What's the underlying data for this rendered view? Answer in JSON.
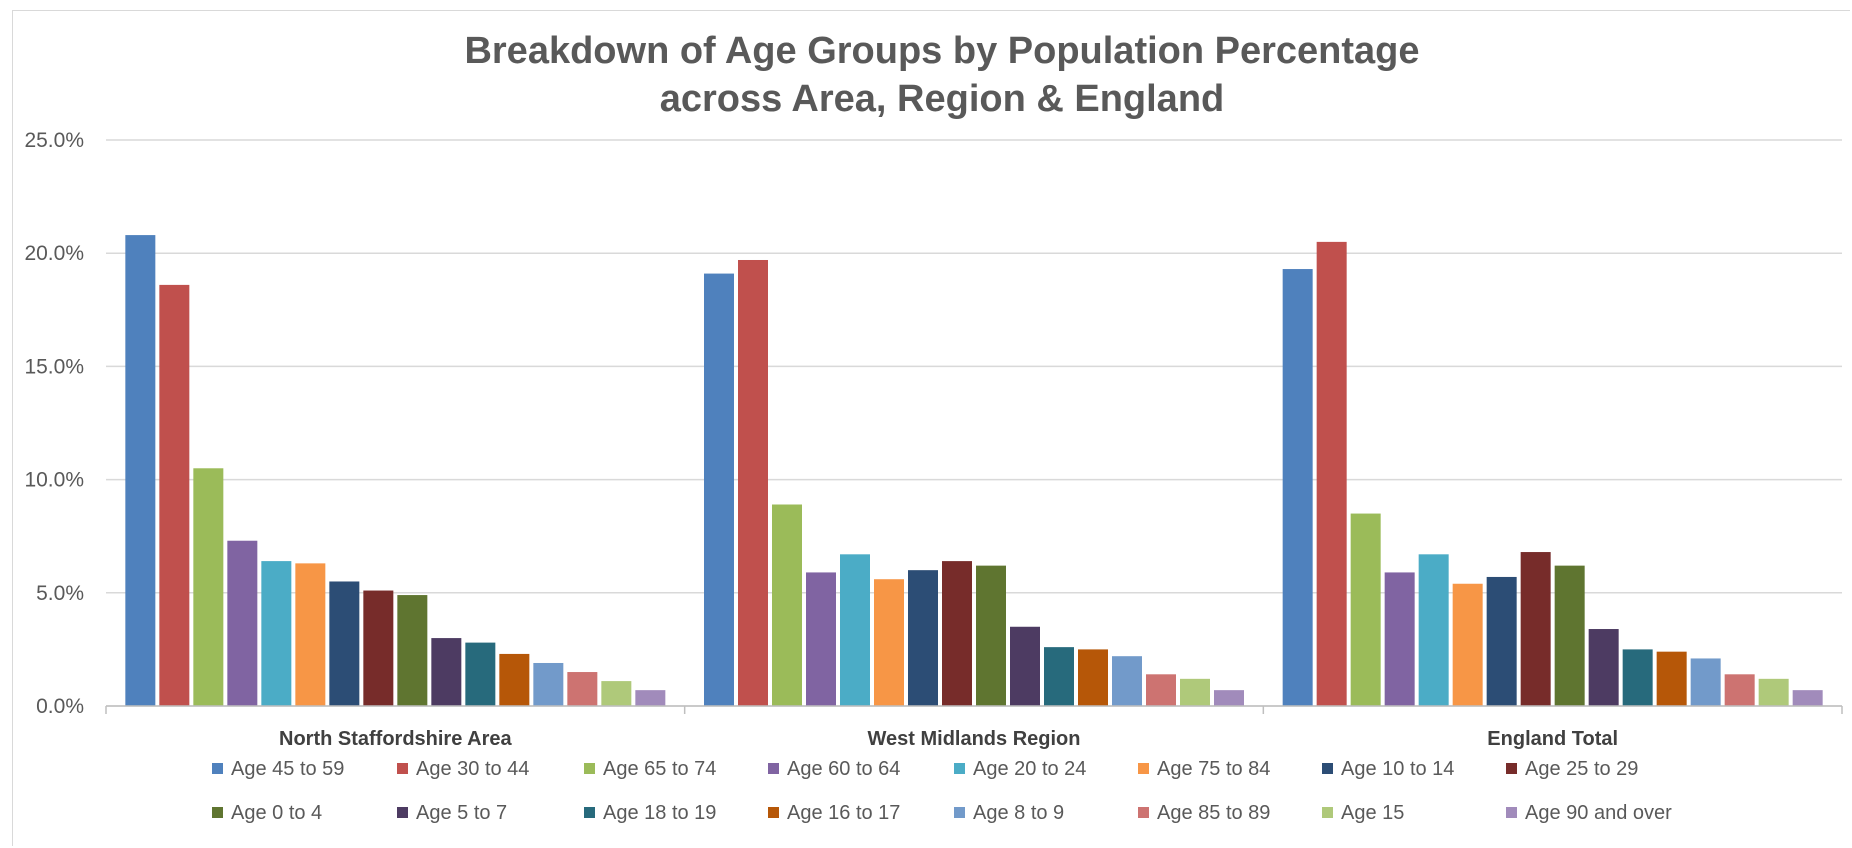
{
  "chart_data": {
    "type": "bar",
    "title_lines": [
      "Breakdown of Age Groups by Population Percentage",
      "across Area, Region & England"
    ],
    "xlabel": "",
    "ylabel": "",
    "ylim": [
      0,
      25
    ],
    "yticks": [
      "0.0%",
      "5.0%",
      "10.0%",
      "15.0%",
      "20.0%",
      "25.0%"
    ],
    "ytick_values": [
      0,
      5,
      10,
      15,
      20,
      25
    ],
    "grid": true,
    "legend_position": "bottom",
    "categories": [
      "North Staffordshire Area",
      "West Midlands Region",
      "England Total"
    ],
    "series": [
      {
        "name": "Age 45 to 59",
        "color": "#4F81BD",
        "values": [
          20.8,
          19.1,
          19.3
        ]
      },
      {
        "name": "Age 30 to 44",
        "color": "#C0504D",
        "values": [
          18.6,
          19.7,
          20.5
        ]
      },
      {
        "name": "Age 65 to 74",
        "color": "#9BBB59",
        "values": [
          10.5,
          8.9,
          8.5
        ]
      },
      {
        "name": "Age 60 to 64",
        "color": "#8064A2",
        "values": [
          7.3,
          5.9,
          5.9
        ]
      },
      {
        "name": "Age 20 to 24",
        "color": "#4BACC6",
        "values": [
          6.4,
          6.7,
          6.7
        ]
      },
      {
        "name": "Age 75 to 84",
        "color": "#F79646",
        "values": [
          6.3,
          5.6,
          5.4
        ]
      },
      {
        "name": "Age 10 to 14",
        "color": "#2C4D75",
        "values": [
          5.5,
          6.0,
          5.7
        ]
      },
      {
        "name": "Age 25 to 29",
        "color": "#772C2A",
        "values": [
          5.1,
          6.4,
          6.8
        ]
      },
      {
        "name": "Age 0 to 4",
        "color": "#5F7530",
        "values": [
          4.9,
          6.2,
          6.2
        ]
      },
      {
        "name": "Age 5 to 7",
        "color": "#4D3B62",
        "values": [
          3.0,
          3.5,
          3.4
        ]
      },
      {
        "name": "Age 18 to 19",
        "color": "#276A7C",
        "values": [
          2.8,
          2.6,
          2.5
        ]
      },
      {
        "name": "Age 16 to 17",
        "color": "#B65708",
        "values": [
          2.3,
          2.5,
          2.4
        ]
      },
      {
        "name": "Age 8 to 9",
        "color": "#729ACA",
        "values": [
          1.9,
          2.2,
          2.1
        ]
      },
      {
        "name": "Age 85 to 89",
        "color": "#CD7371",
        "values": [
          1.5,
          1.4,
          1.4
        ]
      },
      {
        "name": "Age 15",
        "color": "#AFC97A",
        "values": [
          1.1,
          1.2,
          1.2
        ]
      },
      {
        "name": "Age 90 and over",
        "color": "#A18BBB",
        "values": [
          0.7,
          0.7,
          0.7
        ]
      }
    ]
  }
}
